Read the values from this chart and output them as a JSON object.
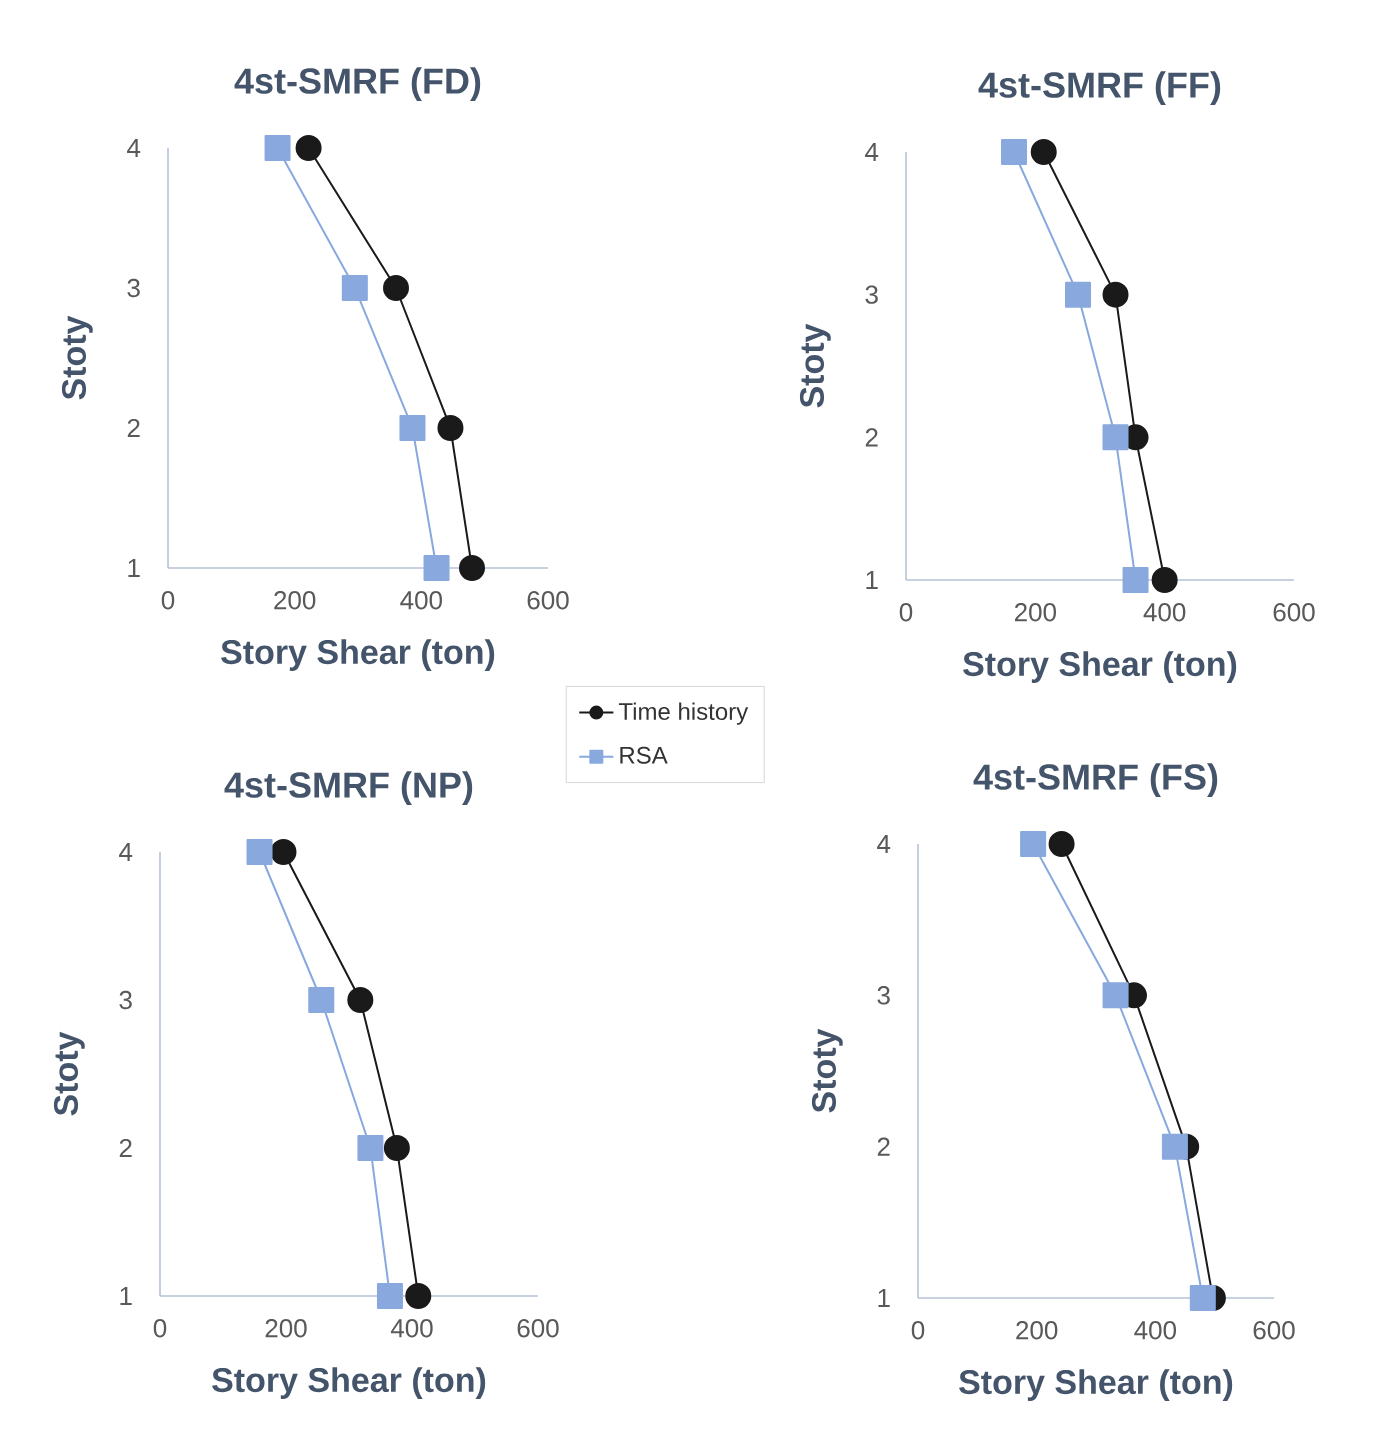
{
  "chart_data": [
    {
      "type": "line",
      "title": "4st-SMRF (FD)",
      "xlabel": "Story Shear (ton)",
      "ylabel": "Stoty",
      "xlim": [
        0,
        600
      ],
      "xticks": [
        0,
        200,
        400,
        600
      ],
      "ylim": [
        1,
        4
      ],
      "yticks": [
        1,
        2,
        3,
        4
      ],
      "legend": "bottom right",
      "grid": false,
      "series": [
        {
          "name": "Time history",
          "color": "#1a1a1a",
          "marker": "circle",
          "x": [
            480,
            446,
            360,
            222
          ],
          "values": [
            1,
            2,
            3,
            4
          ]
        },
        {
          "name": "RSA",
          "color": "#88a8de",
          "marker": "square",
          "x": [
            424,
            386,
            295,
            173
          ],
          "values": [
            1,
            2,
            3,
            4
          ]
        }
      ]
    },
    {
      "type": "line",
      "title": "4st-SMRF (FF)",
      "xlabel": "Story Shear (ton)",
      "ylabel": "Stoty",
      "xlim": [
        0,
        600
      ],
      "xticks": [
        0,
        200,
        400,
        600
      ],
      "ylim": [
        1,
        4
      ],
      "yticks": [
        1,
        2,
        3,
        4
      ],
      "grid": false,
      "series": [
        {
          "color": "#1a1a1a",
          "marker": "circle",
          "x": [
            400,
            355,
            324,
            213
          ],
          "values": [
            1,
            2,
            3,
            4
          ]
        },
        {
          "color": "#88a8de",
          "marker": "square",
          "x": [
            355,
            324,
            266,
            167
          ],
          "values": [
            1,
            2,
            3,
            4
          ]
        }
      ]
    },
    {
      "type": "line",
      "title": "4st-SMRF (NP)",
      "xlabel": "Story Shear (ton)",
      "ylabel": "Stoty",
      "xlim": [
        0,
        600
      ],
      "xticks": [
        0,
        200,
        400,
        600
      ],
      "ylim": [
        1,
        4
      ],
      "yticks": [
        1,
        2,
        3,
        4
      ],
      "grid": false,
      "series": [
        {
          "color": "#1a1a1a",
          "marker": "circle",
          "x": [
            410,
            376,
            318,
            196
          ],
          "values": [
            1,
            2,
            3,
            4
          ]
        },
        {
          "color": "#88a8de",
          "marker": "square",
          "x": [
            365,
            334,
            256,
            158
          ],
          "values": [
            1,
            2,
            3,
            4
          ]
        }
      ]
    },
    {
      "type": "line",
      "title": "4st-SMRF (FS)",
      "xlabel": "Story Shear (ton)",
      "ylabel": "Stoty",
      "xlim": [
        0,
        600
      ],
      "xticks": [
        0,
        200,
        400,
        600
      ],
      "ylim": [
        1,
        4
      ],
      "yticks": [
        1,
        2,
        3,
        4
      ],
      "grid": false,
      "series": [
        {
          "color": "#1a1a1a",
          "marker": "circle",
          "x": [
            497,
            452,
            364,
            242
          ],
          "values": [
            1,
            2,
            3,
            4
          ]
        },
        {
          "color": "#88a8de",
          "marker": "square",
          "x": [
            480,
            433,
            333,
            194
          ],
          "values": [
            1,
            2,
            3,
            4
          ]
        }
      ]
    }
  ]
}
